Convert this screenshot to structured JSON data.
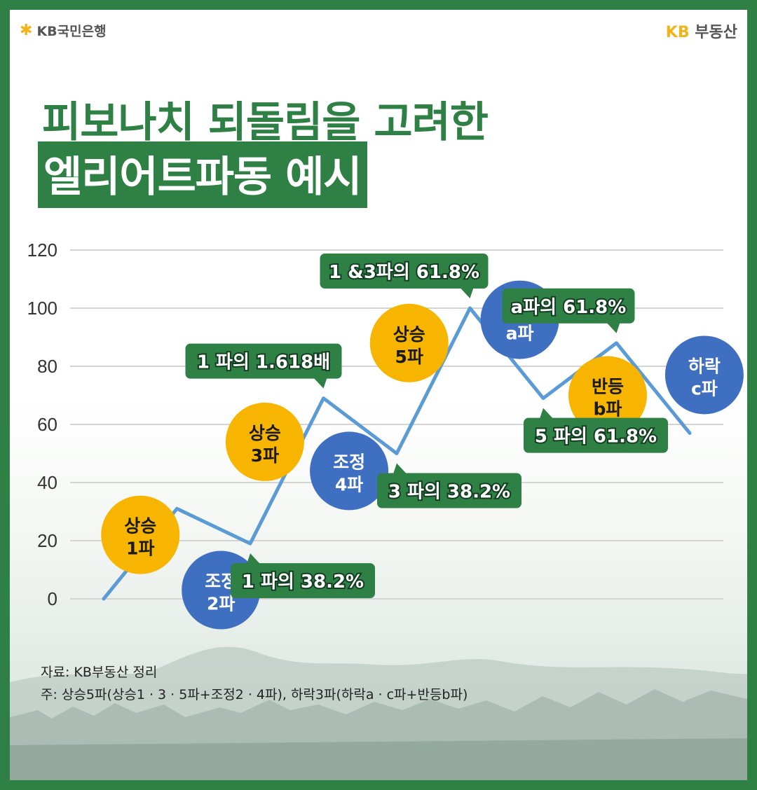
{
  "brand": {
    "left_logo_text": "KB국민은행",
    "right_logo_kb": "KB",
    "right_logo_text": "부동산"
  },
  "title": {
    "line1": "피보나치 되돌림을 고려한",
    "line2": "엘리어트파동 예시"
  },
  "chart_data": {
    "type": "line",
    "x": [
      0,
      1,
      2,
      3,
      4,
      5,
      6,
      7,
      8
    ],
    "series": [
      {
        "values": [
          0,
          31,
          19,
          69,
          50,
          100,
          69,
          88,
          57
        ]
      }
    ],
    "y_ticks": [
      0,
      20,
      40,
      60,
      80,
      100,
      120
    ],
    "ylim": [
      0,
      120
    ],
    "grid": true,
    "line_color": "#5b9bd5",
    "wave_labels": [
      {
        "line1": "상승",
        "line2": "1파",
        "kind": "up",
        "at": 0.5,
        "y": 22
      },
      {
        "line1": "조정",
        "line2": "2파",
        "kind": "down",
        "at": 1.6,
        "y": 3
      },
      {
        "line1": "상승",
        "line2": "3파",
        "kind": "up",
        "at": 2.2,
        "y": 54
      },
      {
        "line1": "조정",
        "line2": "4파",
        "kind": "down",
        "at": 3.35,
        "y": 44
      },
      {
        "line1": "상승",
        "line2": "5파",
        "kind": "up",
        "at": 4.17,
        "y": 88
      },
      {
        "line1": "하락",
        "line2": "a파",
        "kind": "down",
        "at": 5.68,
        "y": 96
      },
      {
        "line1": "반등",
        "line2": "b파",
        "kind": "up",
        "at": 6.88,
        "y": 70
      },
      {
        "line1": "하락",
        "line2": "c파",
        "kind": "down",
        "at": 8.2,
        "y": 77
      }
    ],
    "annotations": [
      {
        "text": "1 파의 38.2%",
        "point": 2,
        "pointer": "up"
      },
      {
        "text": "1 파의 1.618배",
        "point": 3,
        "pointer": "down"
      },
      {
        "text": "3 파의 38.2%",
        "point": 4,
        "pointer": "up"
      },
      {
        "text": "1 &3파의 61.8%",
        "point": 5,
        "pointer": "down"
      },
      {
        "text": "5 파의 61.8%",
        "point": 6,
        "pointer": "up"
      },
      {
        "text": "a파의 61.8%",
        "point": 7,
        "pointer": "down"
      }
    ],
    "colors": {
      "up": "#f7b500",
      "down": "#3f6fc0",
      "callout": "#2f8044"
    }
  },
  "notes": {
    "source": "자료: KB부동산 정리",
    "footnote": "주: 상승5파(상승1 · 3 · 5파+조정2 · 4파), 하락3파(하락a · c파+반등b파)"
  }
}
